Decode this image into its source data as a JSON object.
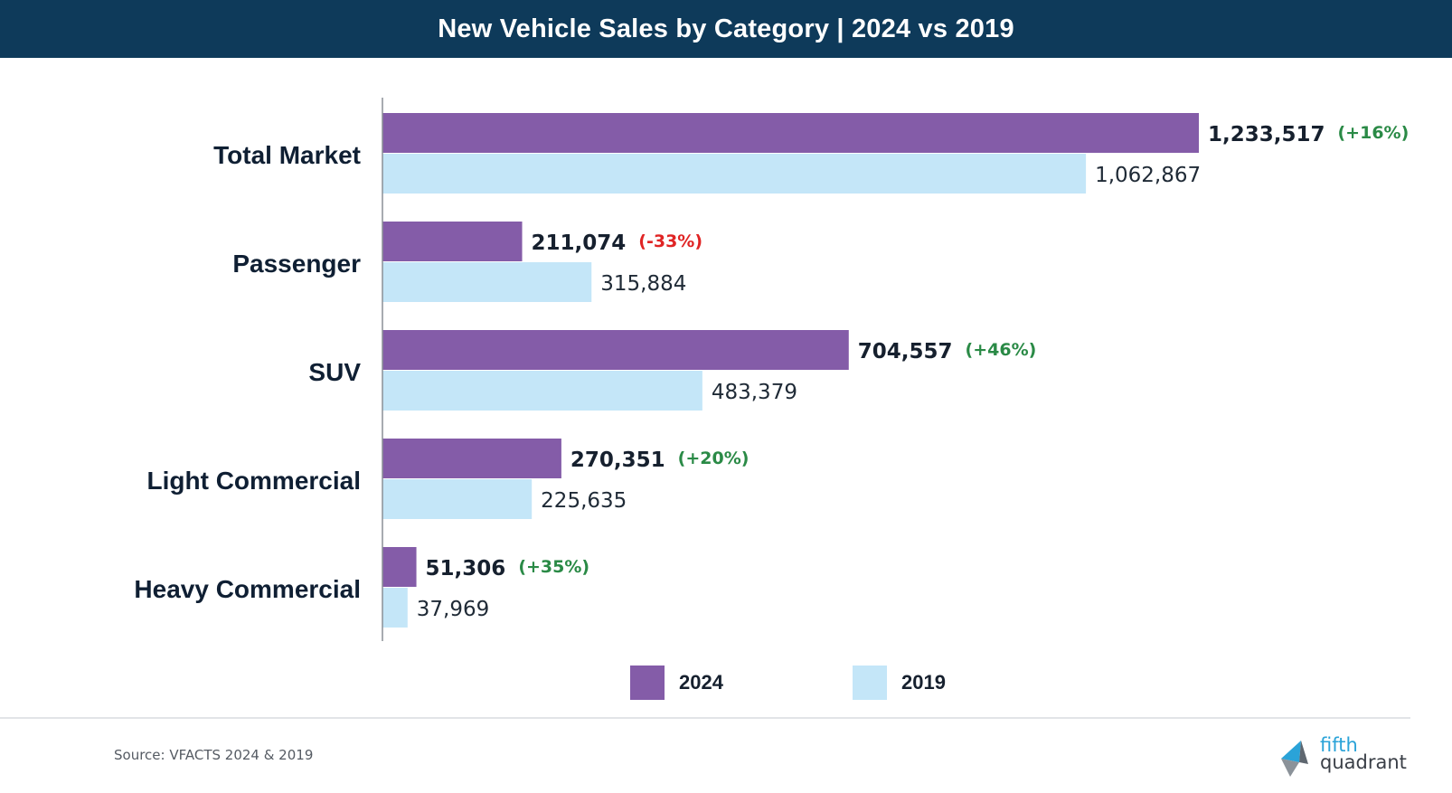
{
  "header": {
    "title": "New Vehicle Sales by Category | 2024 vs 2019"
  },
  "chart_data": {
    "type": "bar",
    "orientation": "horizontal",
    "title": "New Vehicle Sales by Category | 2024 vs 2019",
    "categories": [
      "Total Market",
      "Passenger",
      "SUV",
      "Light Commercial",
      "Heavy Commercial"
    ],
    "series": [
      {
        "name": "2024",
        "color": "#845ca8",
        "values": [
          1233517,
          211074,
          704557,
          270351,
          51306
        ],
        "labels": [
          "1,233,517",
          "211,074",
          "704,557",
          "270,351",
          "51,306"
        ]
      },
      {
        "name": "2019",
        "color": "#c4e6f8",
        "values": [
          1062867,
          315884,
          483379,
          225635,
          37969
        ],
        "labels": [
          "1,062,867",
          "315,884",
          "483,379",
          "225,635",
          "37,969"
        ]
      }
    ],
    "changes": [
      {
        "text": "(+16%)",
        "color": "#2a8a46"
      },
      {
        "text": "(-33%)",
        "color": "#e02424"
      },
      {
        "text": "(+46%)",
        "color": "#2a8a46"
      },
      {
        "text": "(+20%)",
        "color": "#2a8a46"
      },
      {
        "text": "(+35%)",
        "color": "#2a8a46"
      }
    ],
    "xlim": [
      0,
      1233517
    ],
    "grid": false,
    "legend_position": "bottom-center"
  },
  "legend": {
    "items": [
      {
        "label": "2024",
        "color": "#845ca8"
      },
      {
        "label": "2019",
        "color": "#c4e6f8"
      }
    ]
  },
  "footer": {
    "source": "Source: VFACTS 2024 & 2019",
    "logo_line1": "fifth",
    "logo_line2": "quadrant"
  }
}
